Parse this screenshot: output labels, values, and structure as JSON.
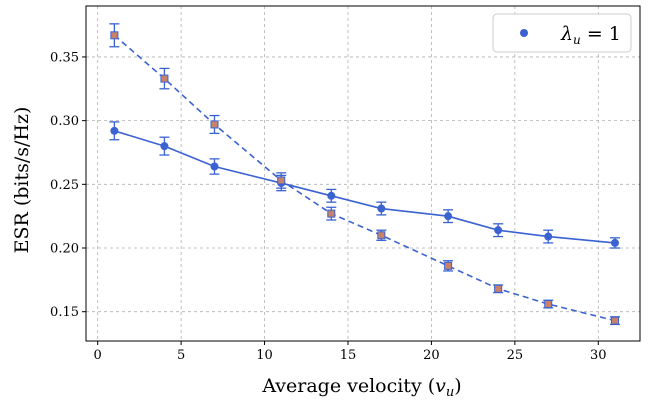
{
  "chart_data": {
    "type": "line",
    "xlabel": "Average velocity (v_u)",
    "ylabel": "ESR (bits/s/Hz)",
    "xlim": [
      -0.7,
      32.5
    ],
    "ylim": [
      0.127,
      0.39
    ],
    "xticks": [
      0,
      5,
      10,
      15,
      20,
      25,
      30
    ],
    "yticks": [
      0.15,
      0.2,
      0.25,
      0.3,
      0.35
    ],
    "ytick_labels": [
      "0.15",
      "0.20",
      "0.25",
      "0.30",
      "0.35"
    ],
    "grid": true,
    "legend_position": "top-right",
    "series": [
      {
        "name": "λ_u = 1",
        "line_style": "solid",
        "marker": "circle",
        "color": "#3a62d1",
        "x": [
          1,
          4,
          7,
          11,
          14,
          17,
          21,
          24,
          27,
          31
        ],
        "y": [
          0.292,
          0.28,
          0.264,
          0.251,
          0.241,
          0.231,
          0.225,
          0.214,
          0.209,
          0.204
        ],
        "err": [
          0.007,
          0.007,
          0.006,
          0.006,
          0.005,
          0.005,
          0.005,
          0.005,
          0.005,
          0.004
        ]
      },
      {
        "line_style": "dashed",
        "marker": "square",
        "color": "#3a62d1",
        "marker_face": "#c8826a",
        "x": [
          1,
          4,
          7,
          11,
          14,
          17,
          21,
          24,
          27,
          31
        ],
        "y": [
          0.367,
          0.333,
          0.297,
          0.253,
          0.227,
          0.21,
          0.186,
          0.168,
          0.156,
          0.143
        ],
        "err": [
          0.009,
          0.008,
          0.007,
          0.006,
          0.005,
          0.004,
          0.004,
          0.003,
          0.003,
          0.003
        ]
      }
    ]
  },
  "legend": {
    "label_prefix": "λ",
    "label_sub": "u",
    "label_suffix": " = 1"
  },
  "axis_titles": {
    "x_main": "Average velocity (",
    "x_var": "v",
    "x_sub": "u",
    "x_close": ")",
    "y": "ESR (bits/s/Hz)"
  }
}
